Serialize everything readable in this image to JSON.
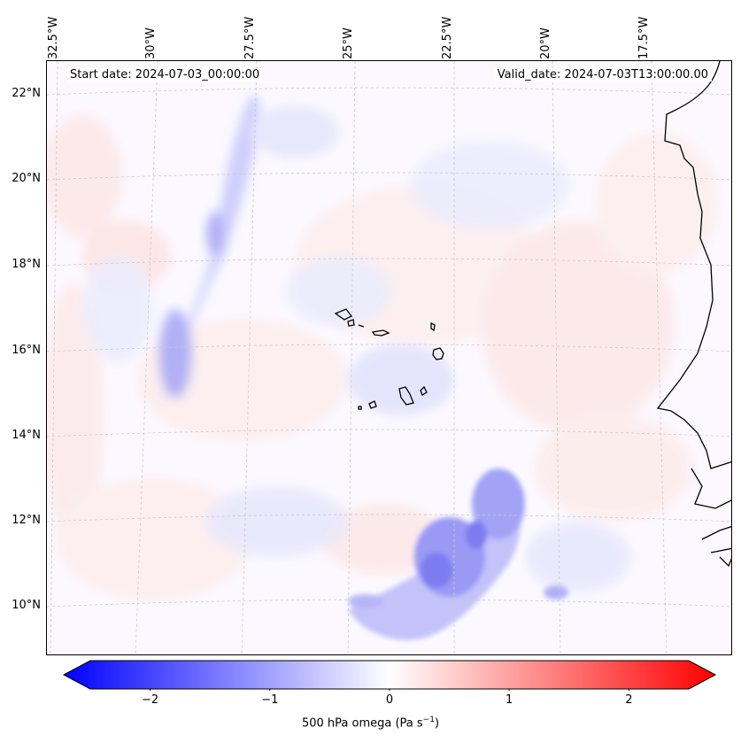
{
  "map": {
    "start_date": "Start date: 2024-07-03_00:00:00",
    "valid_date": "Valid_date: 2024-07-03T13:00:00.00",
    "lon_labels": [
      "32.5°W",
      "30°W",
      "27.5°W",
      "25°W",
      "22.5°W",
      "20°W",
      "17.5°W"
    ],
    "lat_labels": [
      "22°N",
      "20°N",
      "18°N",
      "16°N",
      "14°N",
      "12°N",
      "10°N"
    ],
    "variable": "500 hPa omega"
  },
  "colorbar": {
    "ticks": [
      "−2",
      "−1",
      "0",
      "1",
      "2"
    ],
    "tick_values": [
      -2,
      -1,
      0,
      1,
      2
    ],
    "range": [
      -2.5,
      2.5
    ],
    "label_prefix": "500 hPa omega (Pa s",
    "label_exp": "−1",
    "label_suffix": ")",
    "color_low": "#0000ff",
    "color_mid": "#ffffff",
    "color_high": "#ff0000"
  }
}
